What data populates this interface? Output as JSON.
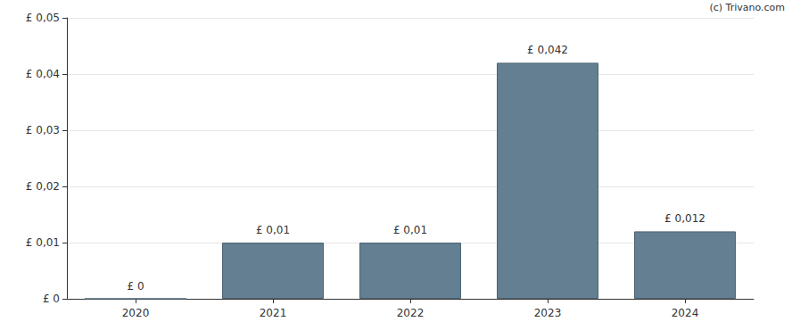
{
  "chart_data": {
    "type": "bar",
    "categories": [
      "2020",
      "2021",
      "2022",
      "2023",
      "2024"
    ],
    "values": [
      0,
      0.01,
      0.01,
      0.042,
      0.012
    ],
    "value_labels": [
      "£ 0",
      "£ 0,01",
      "£ 0,01",
      "£ 0,042",
      "£ 0,012"
    ],
    "data_labels": true,
    "color": "#647f91",
    "ylim": [
      0,
      0.05
    ],
    "yticks": [
      {
        "value": 0,
        "label": "£ 0"
      },
      {
        "value": 0.01,
        "label": "£ 0,01"
      },
      {
        "value": 0.02,
        "label": "£ 0,02"
      },
      {
        "value": 0.03,
        "label": "£ 0,03"
      },
      {
        "value": 0.04,
        "label": "£ 0,04"
      },
      {
        "value": 0.05,
        "label": "£ 0,05"
      }
    ],
    "grid": true,
    "annotations": [
      "(c) Trivano.com"
    ]
  }
}
